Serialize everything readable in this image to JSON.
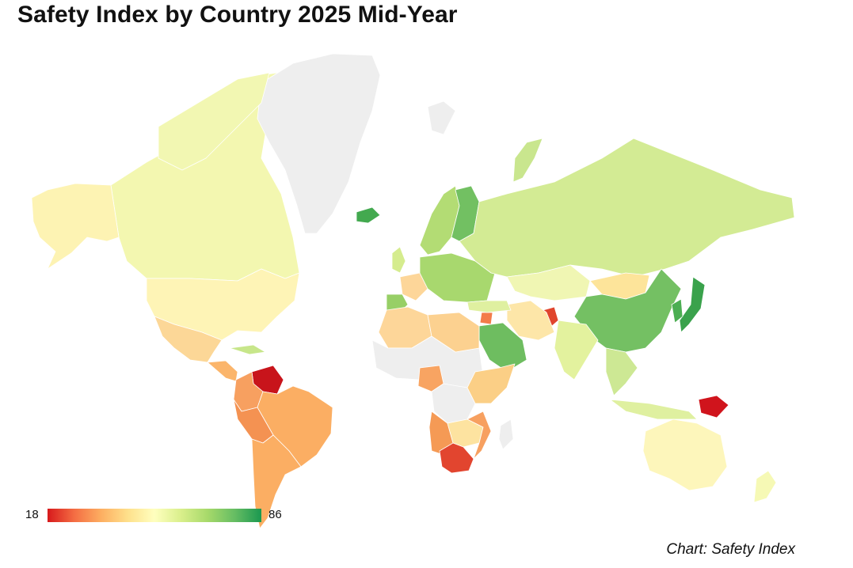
{
  "title": "Safety Index by Country 2025 Mid-Year",
  "credit": "Chart: Safety Index",
  "legend": {
    "min": "18",
    "max": "86",
    "colors": [
      "#d7191c",
      "#f46d43",
      "#fdae61",
      "#fee08b",
      "#ffffbf",
      "#d9ef8b",
      "#a6d96a",
      "#66bd63",
      "#1a9850"
    ]
  },
  "colors": {
    "no_data": "#eeeeee",
    "border": "#ffffff"
  },
  "regions": [
    {
      "name": "Canada",
      "color": "#f3f7b0"
    },
    {
      "name": "Alaska",
      "color": "#fdf3b3"
    },
    {
      "name": "Greenland",
      "color": "#eeeeee"
    },
    {
      "name": "United States",
      "color": "#fef4b6"
    },
    {
      "name": "Mexico",
      "color": "#fcd797"
    },
    {
      "name": "Central America",
      "color": "#fbb56b"
    },
    {
      "name": "Cuba",
      "color": "#c7e68a"
    },
    {
      "name": "Venezuela",
      "color": "#c8141b"
    },
    {
      "name": "Colombia",
      "color": "#f7a060"
    },
    {
      "name": "Brazil",
      "color": "#fbae63"
    },
    {
      "name": "Peru",
      "color": "#f49252"
    },
    {
      "name": "Argentina",
      "color": "#fbae63"
    },
    {
      "name": "Iceland",
      "color": "#43a94f"
    },
    {
      "name": "Scandinavia",
      "color": "#b3dc74"
    },
    {
      "name": "Finland",
      "color": "#72c062"
    },
    {
      "name": "UK",
      "color": "#d5ec8e"
    },
    {
      "name": "France",
      "color": "#fdd699"
    },
    {
      "name": "Iberia",
      "color": "#97cf66"
    },
    {
      "name": "Central Europe",
      "color": "#a8d86e"
    },
    {
      "name": "Russia",
      "color": "#d3eb94"
    },
    {
      "name": "Kazakhstan",
      "color": "#f0f6b3"
    },
    {
      "name": "Mongolia",
      "color": "#fde49a"
    },
    {
      "name": "China",
      "color": "#74c063"
    },
    {
      "name": "Japan",
      "color": "#3aa24c"
    },
    {
      "name": "Korea",
      "color": "#4cae52"
    },
    {
      "name": "Afghanistan",
      "color": "#e0452d"
    },
    {
      "name": "Iran",
      "color": "#fde6a8"
    },
    {
      "name": "Saudi Arabia",
      "color": "#6ebd60"
    },
    {
      "name": "India",
      "color": "#e3f29e"
    },
    {
      "name": "Southeast Asia",
      "color": "#cde894"
    },
    {
      "name": "Indonesia",
      "color": "#dff0a0"
    },
    {
      "name": "Papua New Guinea",
      "color": "#d0141c"
    },
    {
      "name": "Australia",
      "color": "#fdf6bb"
    },
    {
      "name": "New Zealand",
      "color": "#f6f9b5"
    },
    {
      "name": "North Africa",
      "color": "#fdd699"
    },
    {
      "name": "Sahel",
      "color": "#eeeeee"
    },
    {
      "name": "Nigeria",
      "color": "#f8a462"
    },
    {
      "name": "Central Africa",
      "color": "#eeeeee"
    },
    {
      "name": "East Africa",
      "color": "#fbcf86"
    },
    {
      "name": "Angola",
      "color": "#f59a55"
    },
    {
      "name": "Zambia Region",
      "color": "#fde3a0"
    },
    {
      "name": "Mozambique",
      "color": "#f7a060"
    },
    {
      "name": "South Africa",
      "color": "#e2452f"
    },
    {
      "name": "Madagascar",
      "color": "#eeeeee"
    },
    {
      "name": "Libya Egypt",
      "color": "#fcd190"
    },
    {
      "name": "Syria",
      "color": "#f37c4a"
    },
    {
      "name": "Turkey",
      "color": "#dff0a0"
    },
    {
      "name": "Antarctic Islands",
      "color": "#f2f7b2"
    },
    {
      "name": "Svalbard",
      "color": "#eeeeee"
    },
    {
      "name": "Novaya Zemlya",
      "color": "#c9e68e"
    }
  ]
}
